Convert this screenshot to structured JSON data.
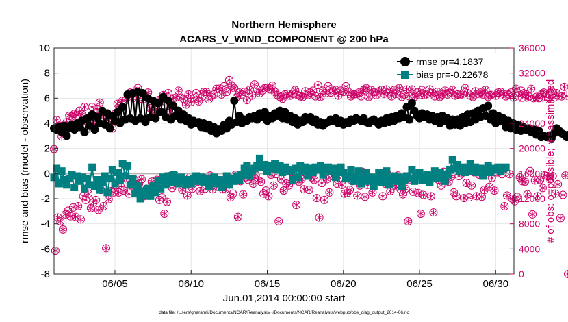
{
  "chart_data": {
    "type": "line",
    "title": "Northern Hemisphere",
    "subtitle": "ACARS_V_WIND_COMPONENT @ 200 hPa",
    "xlabel": "Jun.01,2014 00:00:00 start",
    "ylabel": "rmse and bias (model - observation)",
    "ylabel_right": "# of obs: o=possible; ∗=assimilated",
    "footnote": "data file: /Users/gharamti/Documents/NCAR/Reanalysis/~/Documents/NCAR/Reanalysis/webpub/obs_diag_output_2014-06.nc",
    "xlim": [
      1.0,
      31.2
    ],
    "ylim": [
      -8,
      10
    ],
    "ylim_right": [
      0,
      36000
    ],
    "x_ticks": [
      {
        "x": 5,
        "label": "06/05"
      },
      {
        "x": 10,
        "label": "06/10"
      },
      {
        "x": 15,
        "label": "06/15"
      },
      {
        "x": 20,
        "label": "06/20"
      },
      {
        "x": 25,
        "label": "06/25"
      },
      {
        "x": 30,
        "label": "06/30"
      }
    ],
    "y_ticks": [
      "-8",
      "-6",
      "-4",
      "-2",
      "0",
      "2",
      "4",
      "6",
      "8",
      "10"
    ],
    "y_ticks_right": [
      "0",
      "4000",
      "8000",
      "12000",
      "16000",
      "20000",
      "24000",
      "28000",
      "32000",
      "36000"
    ],
    "grid": true,
    "legend_position": "top-right",
    "colors": {
      "rmse": "#000000",
      "bias": "#008080",
      "obs": "#cc0066",
      "zero_line": "#b3b3b3"
    },
    "series": [
      {
        "name": "rmse pr=4.1837",
        "values": [
          3.6,
          3.5,
          3.7,
          3.3,
          3.8,
          3.0,
          3.6,
          3.9,
          3.5,
          4.0,
          3.7,
          4.2,
          3.3,
          4.4,
          3.8,
          4.7,
          3.5,
          4.5,
          4.0,
          5.0,
          3.9,
          4.8,
          3.6,
          4.6,
          4.2,
          4.9,
          4.0,
          5.3,
          4.3,
          6.3,
          4.4,
          6.4,
          4.2,
          6.5,
          4.4,
          6.4,
          4.1,
          6.0,
          4.5,
          5.8,
          4.4,
          5.6,
          4.9,
          6.1,
          4.5,
          5.8,
          4.3,
          5.4,
          4.6,
          5.0,
          4.3,
          4.7,
          4.2,
          4.4,
          3.9,
          4.2,
          4.0,
          4.1,
          3.7,
          4.0,
          3.6,
          3.9,
          3.4,
          3.7,
          3.2,
          3.5,
          3.4,
          3.9,
          3.6,
          4.2,
          3.9,
          5.8,
          4.1,
          4.6,
          4.0,
          4.3,
          4.2,
          4.5,
          4.4,
          4.6,
          4.3,
          4.8,
          4.5,
          4.9,
          4.2,
          4.6,
          4.4,
          4.8,
          4.6,
          5.0,
          4.4,
          4.9,
          4.3,
          4.6,
          4.1,
          4.4,
          3.9,
          4.2,
          4.1,
          4.5,
          4.3,
          4.5,
          4.1,
          4.3,
          3.9,
          4.1,
          3.8,
          4.0,
          4.1,
          4.3,
          4.2,
          4.4,
          4.0,
          4.2,
          3.9,
          4.1,
          4.0,
          4.3,
          4.2,
          4.4,
          4.3,
          4.2,
          4.4,
          4.1,
          4.0,
          4.2,
          4.3,
          4.1,
          3.9,
          4.2,
          4.0,
          4.4,
          4.1,
          4.5,
          4.2,
          4.6,
          4.4,
          4.8,
          4.5,
          5.3,
          4.3,
          5.6,
          5.0,
          4.6,
          4.4,
          4.8,
          4.5,
          4.7,
          4.3,
          4.6,
          4.2,
          4.5,
          4.0,
          4.6,
          4.2,
          4.4,
          3.8,
          4.3,
          3.9,
          4.3,
          3.8,
          4.5,
          4.0,
          4.7,
          4.1,
          4.8,
          4.3,
          5.0,
          4.5,
          5.2,
          4.6,
          5.4,
          4.3,
          4.8,
          4.0,
          4.6,
          4.2,
          4.4,
          3.7,
          4.2,
          3.6,
          4.0,
          3.5,
          3.9,
          3.4,
          3.7,
          3.5,
          3.6,
          3.3,
          3.5,
          3.1,
          3.4,
          2.9,
          3.0,
          2.9,
          3.0,
          2.8,
          3.2,
          3.6,
          3.4,
          3.2,
          3.1,
          2.9,
          3.1,
          2.9,
          2.9
        ]
      },
      {
        "name": "bias pr=-0.22678",
        "values": [
          -0.3,
          0.4,
          -0.8,
          0.2,
          -0.5,
          -0.9,
          -0.4,
          -0.1,
          -1.1,
          -0.2,
          -0.6,
          -0.3,
          -1.2,
          -0.4,
          -0.9,
          0.5,
          -1.0,
          -0.5,
          -1.3,
          -0.7,
          -0.2,
          -1.5,
          -0.4,
          0.3,
          -0.8,
          0.1,
          -0.5,
          0.8,
          -0.2,
          0.6,
          -0.9,
          -0.4,
          -1.6,
          -1.0,
          -2.0,
          -1.4,
          -1.7,
          -1.2,
          -1.8,
          -1.0,
          -1.5,
          -0.6,
          -1.2,
          -0.3,
          -0.9,
          -0.2,
          -0.7,
          -0.1,
          -0.5,
          -0.8,
          -0.3,
          -0.6,
          -0.9,
          -0.5,
          -0.8,
          -0.4,
          -0.2,
          -0.6,
          -0.3,
          -0.7,
          -0.4,
          -1.0,
          -0.6,
          -0.3,
          -0.8,
          -0.5,
          -1.1,
          -0.7,
          -0.2,
          -0.9,
          -0.4,
          -0.6,
          -0.2,
          -0.5,
          -0.1,
          0.4,
          0.6,
          -0.2,
          0.2,
          0.4,
          0.6,
          1.2,
          0.5,
          0.7,
          0.2,
          0.6,
          0.4,
          0.8,
          0.3,
          0.6,
          0.1,
          0.5,
          0.3,
          0.2,
          -0.5,
          0.4,
          -0.3,
          0.6,
          0.2,
          0.5,
          -0.2,
          0.4,
          0.1,
          0.5,
          0.3,
          0.6,
          -0.1,
          0.3,
          0.5,
          0.2,
          0.4,
          -0.3,
          0.2,
          0.5,
          0.1,
          -0.4,
          -0.2,
          0.3,
          -0.6,
          -0.3,
          0.2,
          -0.8,
          -0.4,
          0.1,
          -0.6,
          -0.3,
          -1.0,
          -0.5,
          0.1,
          -0.7,
          -0.3,
          0.2,
          -0.9,
          -0.4,
          -0.2,
          -0.6,
          -0.3,
          -1.0,
          -0.5,
          -0.2,
          -0.4,
          0.3,
          -0.6,
          -0.2,
          0.1,
          -0.5,
          -0.3,
          -0.1,
          -0.7,
          -0.2,
          0.2,
          -0.4,
          0.1,
          -0.3,
          -0.6,
          -0.1,
          0.3,
          1.1,
          0.4,
          0.7,
          0.2,
          0.5,
          0.1,
          0.4,
          0.8,
          0.2,
          0.5,
          0.1,
          0.4,
          -0.2,
          0.3,
          0.6,
          0.1,
          0.4,
          0.3,
          0.5,
          0.2,
          0.4,
          0.5
        ]
      }
    ],
    "obs_counts": {
      "possible": [
        19900,
        3700,
        24500,
        9000,
        23600,
        8400,
        21900,
        7100,
        23800,
        9500,
        24200,
        10100,
        25200,
        9200,
        25100,
        10600,
        25500,
        9100,
        25300,
        10800,
        26000,
        8700,
        25400,
        12400,
        26600,
        11800,
        24300,
        12800,
        23200,
        10500,
        26600,
        11400,
        23700,
        11800,
        26300,
        10200,
        27300,
        13400,
        25700,
        10800,
        25200,
        4100,
        25000,
        11900,
        24300,
        13200,
        23200,
        13000,
        25500,
        14200,
        27100,
        13000,
        26800,
        14500,
        27600,
        13300,
        27600,
        15300,
        28500,
        12800,
        28900,
        14100,
        28000,
        15100,
        28400,
        13900,
        29600,
        14400,
        28500,
        15100,
        27800,
        12400,
        28200,
        13600,
        28900,
        12900,
        26400,
        14700,
        25600,
        13300,
        26300,
        15000,
        27700,
        11800,
        25900,
        12200,
        28500,
        9600,
        27400,
        11500,
        28800,
        15600,
        26000,
        13700,
        28000,
        15800,
        28100,
        14500,
        29200,
        15300,
        28100,
        13400,
        27900,
        14900,
        27000,
        12500,
        28600,
        15400,
        27400,
        13600,
        28000,
        15300,
        28800,
        14700,
        27500,
        13200,
        28100,
        15500,
        29000,
        13600,
        29000,
        14600,
        27800,
        15700,
        28400,
        13500,
        28600,
        14900,
        29500,
        13900,
        29500,
        14900,
        28600,
        13500,
        29900,
        13500,
        29000,
        15200,
        30900,
        12200,
        30000,
        12800,
        29600,
        15800,
        28200,
        9100,
        28900,
        14800,
        28600,
        12700,
        29000,
        15400,
        27700,
        15000,
        29300,
        15500,
        28400,
        14400,
        30200,
        15800,
        29400,
        14900,
        28800,
        14700,
        29200,
        12800,
        29600,
        13300,
        29700,
        12400,
        29400,
        15800,
        30000,
        14100,
        29000,
        15900,
        28500,
        8400,
        28200,
        15100,
        27900,
        13300,
        28600,
        14400,
        28700,
        14100,
        28400,
        16200,
        28700,
        14900,
        29300,
        11000,
        28500,
        14700,
        28300,
        15100,
        28200,
        13500,
        29100,
        16000,
        28500,
        13400,
        28900,
        15400,
        29200,
        15000,
        28300,
        12100,
        30100,
        9000,
        28200,
        14500,
        29200,
        11800,
        28800,
        15100,
        29900,
        13000,
        28900,
        15600,
        29100,
        16000,
        29300,
        14400,
        28400,
        15300,
        29200,
        14200,
        29000,
        12800,
        29900,
        12900,
        29000,
        13400,
        28300,
        14800,
        28600,
        15300,
        28700,
        12500,
        28900,
        14100,
        28300,
        16300,
        29300,
        12300,
        29600,
        14200,
        28200,
        15500,
        29300,
        13000,
        29000,
        14700,
        28500,
        15400,
        29100,
        15700,
        29300,
        12400,
        28700,
        14400,
        29400,
        15900,
        28800,
        13200,
        28300,
        14000,
        29300,
        14200,
        28700,
        15700,
        29600,
        13500,
        28200,
        12700,
        28600,
        13600,
        29400,
        8400,
        28300,
        15000,
        29400,
        13100,
        28200,
        15700,
        28900,
        12900,
        28500,
        9600,
        29300,
        12600,
        28500,
        15400,
        28700,
        15700,
        29400,
        12400,
        28800,
        9800,
        28300,
        15400,
        29000,
        15000,
        28200,
        14100,
        28600,
        16300,
        29200,
        15900,
        28600,
        14700,
        28800,
        15500,
        29300,
        13000,
        28400,
        12400,
        28600,
        15600,
        28500,
        16000,
        28700,
        12100,
        29600,
        14500,
        28800,
        12200,
        28400,
        14100,
        28200,
        16200,
        29100,
        12400,
        28700,
        15800,
        28900,
        12300,
        28600,
        13400,
        29300,
        16500,
        28200,
        13900,
        28500,
        15300,
        28700,
        13300,
        28400,
        16200,
        28900,
        16300,
        29000,
        15900,
        28700,
        10800,
        28300,
        12500,
        28600,
        15900,
        28900,
        12000,
        28100,
        11600,
        29500,
        12300,
        28400,
        15400,
        29200,
        14800,
        28700,
        14700,
        28600,
        12700,
        28300,
        16400,
        29500,
        9500,
        28000,
        14900,
        28200,
        12400,
        28000,
        15000,
        28600,
        13700,
        28900,
        15700,
        28700,
        15600,
        28000,
        15100,
        29100,
        15600,
        28100,
        12800,
        28800,
        14300,
        28400,
        8900,
        28300,
        12600,
        29800,
        15700,
        28400,
        0
      ]
    },
    "legend": [
      {
        "series": "rmse pr=4.1837",
        "marker": "circle"
      },
      {
        "series": "bias pr=-0.22678",
        "marker": "square"
      }
    ]
  }
}
